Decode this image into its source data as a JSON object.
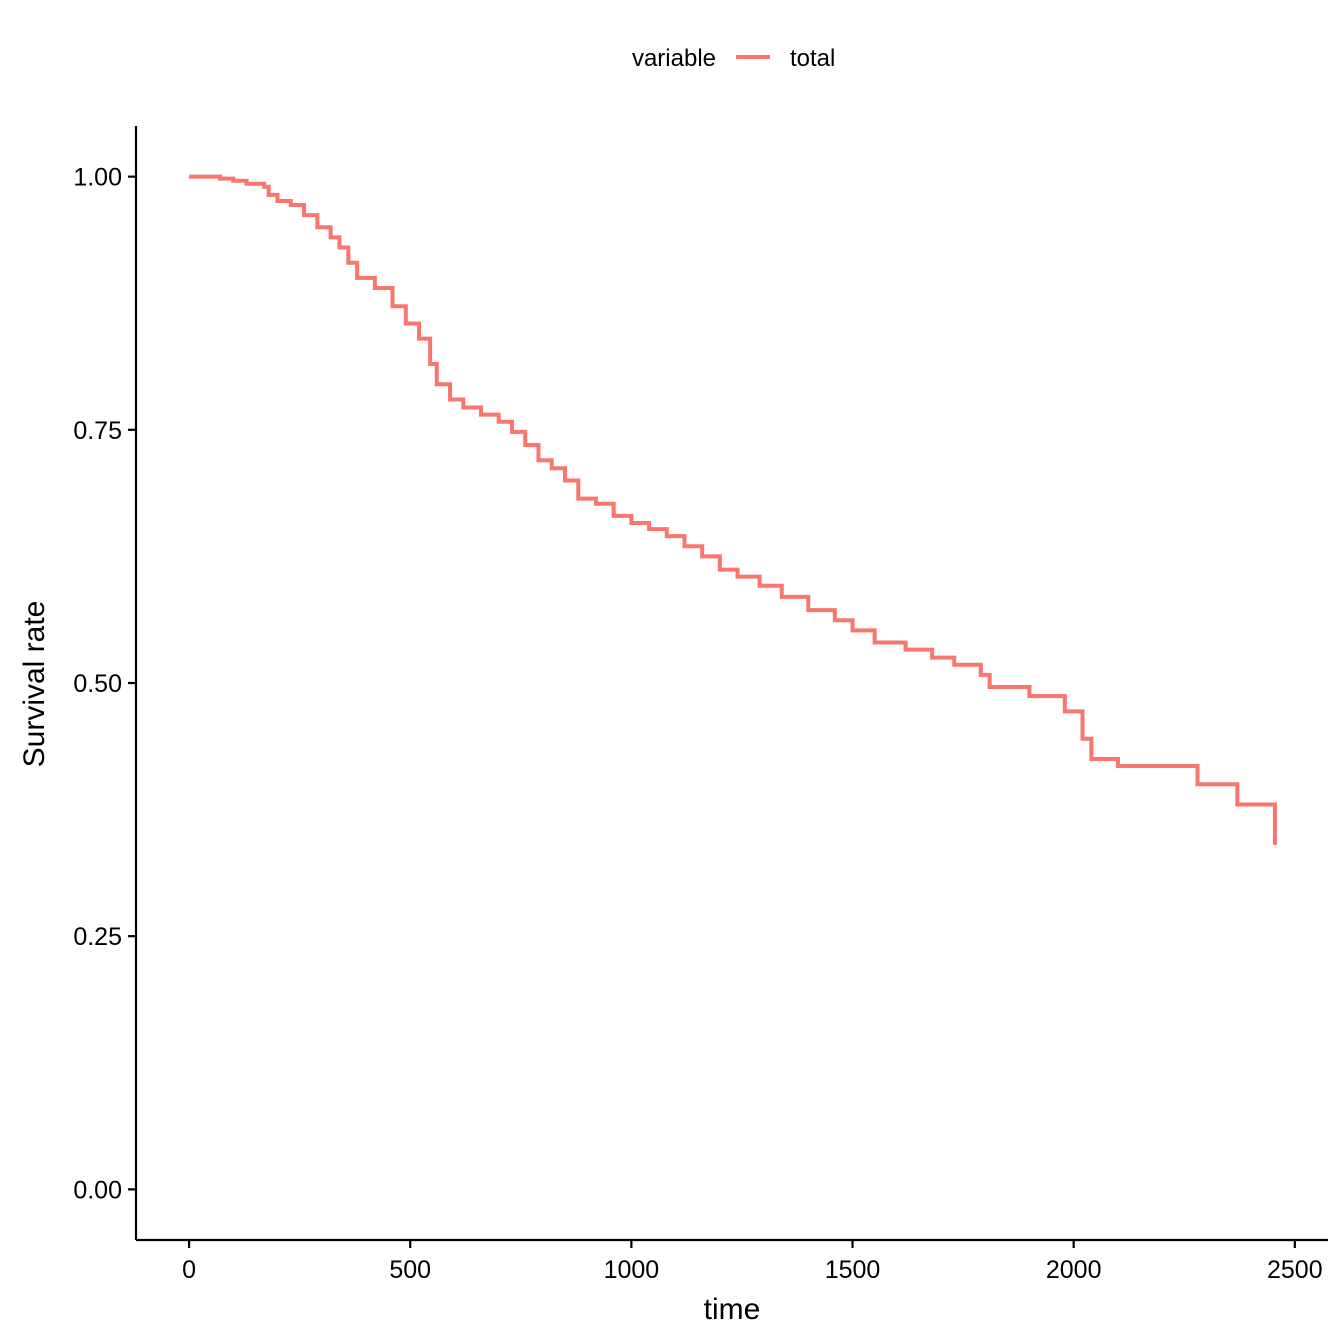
{
  "chart_data": {
    "type": "line",
    "subtype": "step",
    "title": "",
    "xlabel": "time",
    "ylabel": "Survival rate",
    "xlim": [
      -120,
      2575
    ],
    "ylim": [
      -0.05,
      1.05
    ],
    "x_ticks": [
      0,
      500,
      1000,
      1500,
      2000,
      2500
    ],
    "x_tick_labels": [
      "0",
      "500",
      "1000",
      "1500",
      "2000",
      "2500"
    ],
    "y_ticks": [
      0.0,
      0.25,
      0.5,
      0.75,
      1.0
    ],
    "y_tick_labels": [
      "0.00",
      "0.25",
      "0.50",
      "0.75",
      "1.00"
    ],
    "grid": false,
    "legend": {
      "position": "top",
      "title": "variable",
      "entries": [
        {
          "label": "total",
          "color": "#F8766D"
        }
      ]
    },
    "series": [
      {
        "name": "total",
        "color": "#F8766D",
        "points": [
          [
            0,
            1.0
          ],
          [
            70,
            0.998
          ],
          [
            100,
            0.996
          ],
          [
            130,
            0.993
          ],
          [
            170,
            0.99
          ],
          [
            180,
            0.982
          ],
          [
            200,
            0.976
          ],
          [
            230,
            0.972
          ],
          [
            260,
            0.962
          ],
          [
            290,
            0.95
          ],
          [
            320,
            0.94
          ],
          [
            340,
            0.93
          ],
          [
            360,
            0.915
          ],
          [
            380,
            0.9
          ],
          [
            420,
            0.89
          ],
          [
            460,
            0.872
          ],
          [
            490,
            0.855
          ],
          [
            520,
            0.84
          ],
          [
            545,
            0.815
          ],
          [
            560,
            0.795
          ],
          [
            590,
            0.78
          ],
          [
            620,
            0.772
          ],
          [
            660,
            0.765
          ],
          [
            700,
            0.758
          ],
          [
            730,
            0.748
          ],
          [
            760,
            0.735
          ],
          [
            790,
            0.72
          ],
          [
            820,
            0.712
          ],
          [
            850,
            0.7
          ],
          [
            880,
            0.682
          ],
          [
            920,
            0.677
          ],
          [
            960,
            0.665
          ],
          [
            1000,
            0.658
          ],
          [
            1040,
            0.652
          ],
          [
            1080,
            0.645
          ],
          [
            1120,
            0.635
          ],
          [
            1160,
            0.625
          ],
          [
            1200,
            0.612
          ],
          [
            1240,
            0.605
          ],
          [
            1290,
            0.596
          ],
          [
            1340,
            0.585
          ],
          [
            1400,
            0.572
          ],
          [
            1460,
            0.562
          ],
          [
            1500,
            0.552
          ],
          [
            1550,
            0.54
          ],
          [
            1620,
            0.533
          ],
          [
            1680,
            0.525
          ],
          [
            1730,
            0.518
          ],
          [
            1790,
            0.508
          ],
          [
            1810,
            0.496
          ],
          [
            1900,
            0.487
          ],
          [
            1980,
            0.472
          ],
          [
            2020,
            0.445
          ],
          [
            2040,
            0.425
          ],
          [
            2100,
            0.418
          ],
          [
            2280,
            0.4
          ],
          [
            2370,
            0.38
          ],
          [
            2455,
            0.34
          ]
        ]
      }
    ]
  }
}
